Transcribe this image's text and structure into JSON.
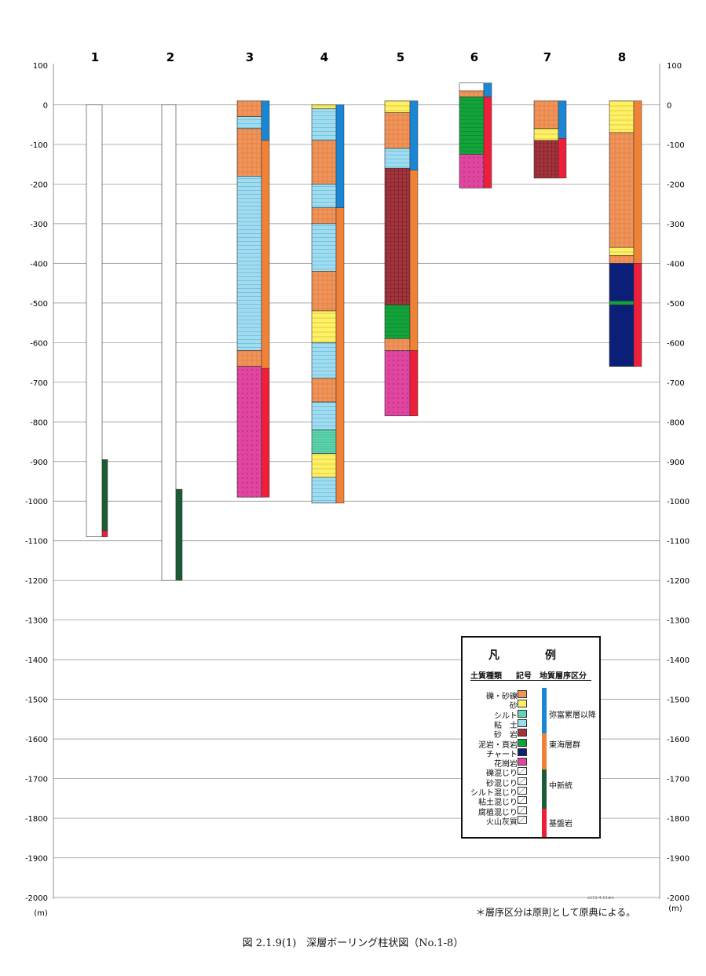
{
  "chart_data": {
    "type": "borehole-column",
    "y_unit_label": "(m)",
    "ylim": [
      -2000,
      100
    ],
    "y_ticks": [
      100,
      0,
      -100,
      -200,
      -300,
      -400,
      -500,
      -600,
      -700,
      -800,
      -900,
      -1000,
      -1100,
      -1200,
      -1300,
      -1400,
      -1500,
      -1600,
      -1700,
      -1800,
      -1900,
      -2000
    ],
    "colors": {
      "gravel": "#f0955a",
      "sand": "#fff066",
      "silt": "#5fd6b0",
      "clay": "#9fdcf0",
      "sandstone": "#a1343c",
      "mudstone": "#12a33a",
      "chert": "#0c1f78",
      "granite": "#e0469f",
      "blank": "#ffffff",
      "strat_yatomi": "#1a86d4",
      "strat_tokai": "#f08237",
      "strat_miocene": "#1b5b35",
      "strat_basement": "#ee1f3a"
    },
    "boreholes": [
      {
        "label": "1",
        "top": 0,
        "bottom": -1090,
        "layers": [
          {
            "top": 0,
            "bottom": -1090,
            "soil": "blank"
          }
        ],
        "strata": [
          {
            "top": -895,
            "bottom": -1075,
            "unit": "strat_miocene"
          },
          {
            "top": -1075,
            "bottom": -1090,
            "unit": "strat_basement"
          }
        ]
      },
      {
        "label": "2",
        "top": 0,
        "bottom": -1200,
        "layers": [
          {
            "top": 0,
            "bottom": -1200,
            "soil": "blank"
          }
        ],
        "strata": [
          {
            "top": -970,
            "bottom": -1200,
            "unit": "strat_miocene"
          }
        ]
      },
      {
        "label": "3",
        "top": 10,
        "bottom": -990,
        "layers": [
          {
            "top": 10,
            "bottom": -30,
            "soil": "gravel"
          },
          {
            "top": -30,
            "bottom": -60,
            "soil": "clay"
          },
          {
            "top": -60,
            "bottom": -180,
            "soil": "gravel"
          },
          {
            "top": -180,
            "bottom": -620,
            "soil": "clay"
          },
          {
            "top": -620,
            "bottom": -660,
            "soil": "gravel"
          },
          {
            "top": -660,
            "bottom": -990,
            "soil": "granite"
          }
        ],
        "strata": [
          {
            "top": 10,
            "bottom": -90,
            "unit": "strat_yatomi"
          },
          {
            "top": -90,
            "bottom": -665,
            "unit": "strat_tokai"
          },
          {
            "top": -665,
            "bottom": -990,
            "unit": "strat_basement"
          }
        ]
      },
      {
        "label": "4",
        "top": 0,
        "bottom": -1005,
        "layers": [
          {
            "top": 0,
            "bottom": -10,
            "soil": "sand"
          },
          {
            "top": -10,
            "bottom": -90,
            "soil": "clay"
          },
          {
            "top": -90,
            "bottom": -200,
            "soil": "gravel"
          },
          {
            "top": -200,
            "bottom": -260,
            "soil": "clay"
          },
          {
            "top": -260,
            "bottom": -300,
            "soil": "gravel"
          },
          {
            "top": -300,
            "bottom": -420,
            "soil": "clay"
          },
          {
            "top": -420,
            "bottom": -520,
            "soil": "gravel"
          },
          {
            "top": -520,
            "bottom": -600,
            "soil": "sand"
          },
          {
            "top": -600,
            "bottom": -690,
            "soil": "clay"
          },
          {
            "top": -690,
            "bottom": -750,
            "soil": "gravel"
          },
          {
            "top": -750,
            "bottom": -820,
            "soil": "clay"
          },
          {
            "top": -820,
            "bottom": -880,
            "soil": "silt"
          },
          {
            "top": -880,
            "bottom": -940,
            "soil": "sand"
          },
          {
            "top": -940,
            "bottom": -1005,
            "soil": "clay"
          }
        ],
        "strata": [
          {
            "top": 0,
            "bottom": -260,
            "unit": "strat_yatomi"
          },
          {
            "top": -260,
            "bottom": -1005,
            "unit": "strat_tokai"
          }
        ]
      },
      {
        "label": "5",
        "top": 10,
        "bottom": -785,
        "layers": [
          {
            "top": 10,
            "bottom": -20,
            "soil": "sand"
          },
          {
            "top": -20,
            "bottom": -110,
            "soil": "gravel"
          },
          {
            "top": -110,
            "bottom": -160,
            "soil": "clay"
          },
          {
            "top": -160,
            "bottom": -505,
            "soil": "sandstone"
          },
          {
            "top": -505,
            "bottom": -590,
            "soil": "mudstone"
          },
          {
            "top": -590,
            "bottom": -620,
            "soil": "gravel"
          },
          {
            "top": -620,
            "bottom": -785,
            "soil": "granite"
          }
        ],
        "strata": [
          {
            "top": 10,
            "bottom": -165,
            "unit": "strat_yatomi"
          },
          {
            "top": -165,
            "bottom": -620,
            "unit": "strat_tokai"
          },
          {
            "top": -620,
            "bottom": -785,
            "unit": "strat_basement"
          }
        ]
      },
      {
        "label": "6",
        "top": 55,
        "bottom": -210,
        "layers": [
          {
            "top": 55,
            "bottom": 35,
            "soil": "blank"
          },
          {
            "top": 35,
            "bottom": 20,
            "soil": "gravel"
          },
          {
            "top": 20,
            "bottom": -125,
            "soil": "mudstone"
          },
          {
            "top": -125,
            "bottom": -210,
            "soil": "granite"
          }
        ],
        "strata": [
          {
            "top": 55,
            "bottom": 20,
            "unit": "strat_yatomi"
          },
          {
            "top": 20,
            "bottom": -210,
            "unit": "strat_basement"
          }
        ]
      },
      {
        "label": "7",
        "top": 10,
        "bottom": -185,
        "layers": [
          {
            "top": 10,
            "bottom": -60,
            "soil": "gravel"
          },
          {
            "top": -60,
            "bottom": -90,
            "soil": "sand"
          },
          {
            "top": -90,
            "bottom": -185,
            "soil": "sandstone"
          }
        ],
        "strata": [
          {
            "top": 10,
            "bottom": -85,
            "unit": "strat_yatomi"
          },
          {
            "top": -85,
            "bottom": -185,
            "unit": "strat_basement"
          }
        ]
      },
      {
        "label": "8",
        "top": 10,
        "bottom": -660,
        "layers": [
          {
            "top": 10,
            "bottom": -70,
            "soil": "sand"
          },
          {
            "top": -70,
            "bottom": -360,
            "soil": "gravel"
          },
          {
            "top": -360,
            "bottom": -380,
            "soil": "sand"
          },
          {
            "top": -380,
            "bottom": -400,
            "soil": "gravel"
          },
          {
            "top": -400,
            "bottom": -495,
            "soil": "chert"
          },
          {
            "top": -495,
            "bottom": -505,
            "soil": "mudstone"
          },
          {
            "top": -505,
            "bottom": -660,
            "soil": "chert"
          }
        ],
        "strata": [
          {
            "top": 10,
            "bottom": -400,
            "unit": "strat_tokai"
          },
          {
            "top": -400,
            "bottom": -660,
            "unit": "strat_basement"
          }
        ]
      }
    ]
  },
  "legend": {
    "title": "凡　例",
    "col_soil": "土質種類",
    "col_symbol": "記号",
    "col_strat": "地質層序区分",
    "soil_items": [
      {
        "label": "礫・砂礫",
        "color": "#f0955a"
      },
      {
        "label": "砂",
        "color": "#fff066"
      },
      {
        "label": "シルト",
        "color": "#5fd6b0"
      },
      {
        "label": "粘　土",
        "color": "#9fdcf0"
      },
      {
        "label": "砂　岩",
        "color": "#a1343c"
      },
      {
        "label": "泥岩・頁岩",
        "color": "#12a33a"
      },
      {
        "label": "チャート",
        "color": "#0c1f78"
      },
      {
        "label": "花崗岩",
        "color": "#e0469f"
      },
      {
        "label": "礫混じり",
        "color": "#ffffff"
      },
      {
        "label": "砂混じり",
        "color": "#ffffff"
      },
      {
        "label": "シルト混じり",
        "color": "#ffffff"
      },
      {
        "label": "粘土混じり",
        "color": "#ffffff"
      },
      {
        "label": "腐植混じり",
        "color": "#ffffff"
      },
      {
        "label": "火山灰質",
        "color": "#ffffff"
      }
    ],
    "strat_items": [
      {
        "label": "弥富累層以降",
        "color": "#1a86d4"
      },
      {
        "label": "東海層群",
        "color": "#f08237"
      },
      {
        "label": "中新統",
        "color": "#1b5b35"
      },
      {
        "label": "基盤岩",
        "color": "#ee1f3a"
      }
    ]
  },
  "footnote": "＊層序区分は原則として原典による。",
  "caption": "図 2.1.9(1)　深層ボーリング柱状図（No.1-8）",
  "small_mark": "e111-4-11dm"
}
